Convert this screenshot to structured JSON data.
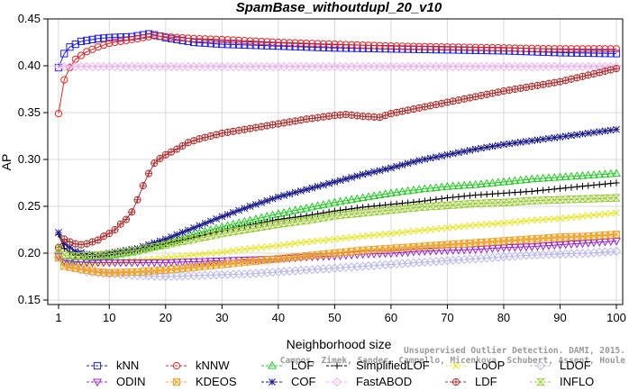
{
  "chart_data": {
    "type": "line",
    "title": "SpamBase_withoutdupl_20_v10",
    "xlabel": "Neighborhood size",
    "ylabel": "AP",
    "xlim": [
      1,
      100
    ],
    "ylim": [
      0.15,
      0.45
    ],
    "xticks": [
      "1",
      "10",
      "20",
      "30",
      "40",
      "50",
      "60",
      "70",
      "80",
      "90",
      "100"
    ],
    "yticks": [
      "0.15",
      "0.20",
      "0.25",
      "0.30",
      "0.35",
      "0.40",
      "0.45"
    ],
    "grid": true,
    "legend_position": "bottom",
    "credit_lines": [
      "Unsupervised Outlier Detection. DAMI, 2015.",
      "Campos, Zimek, Sander, Campello, Micenkova, Schubert, Assent, Houle"
    ],
    "series": [
      {
        "name": "kNN",
        "color": "#1f1fe6",
        "marker": "square",
        "x": [
          1,
          2,
          3,
          5,
          8,
          10,
          14,
          17,
          18,
          20,
          25,
          30,
          40,
          50,
          60,
          70,
          80,
          90,
          100
        ],
        "values": [
          0.398,
          0.413,
          0.42,
          0.426,
          0.429,
          0.43,
          0.431,
          0.434,
          0.433,
          0.43,
          0.425,
          0.423,
          0.421,
          0.419,
          0.418,
          0.417,
          0.416,
          0.414,
          0.413
        ]
      },
      {
        "name": "kNNW",
        "color": "#e6231f",
        "marker": "circle",
        "x": [
          1,
          2,
          3,
          4,
          6,
          8,
          10,
          14,
          17,
          18,
          20,
          25,
          30,
          40,
          50,
          60,
          70,
          80,
          90,
          100
        ],
        "values": [
          0.349,
          0.385,
          0.398,
          0.407,
          0.415,
          0.42,
          0.424,
          0.428,
          0.431,
          0.432,
          0.431,
          0.429,
          0.428,
          0.425,
          0.423,
          0.421,
          0.42,
          0.419,
          0.418,
          0.418
        ]
      },
      {
        "name": "LOF",
        "color": "#22cc22",
        "marker": "triangle-up",
        "x": [
          1,
          2,
          4,
          6,
          8,
          10,
          15,
          20,
          25,
          30,
          35,
          40,
          45,
          50,
          55,
          60,
          65,
          70,
          75,
          80,
          85,
          90,
          95,
          100
        ],
        "values": [
          0.198,
          0.19,
          0.193,
          0.194,
          0.195,
          0.197,
          0.202,
          0.21,
          0.22,
          0.228,
          0.235,
          0.242,
          0.248,
          0.254,
          0.259,
          0.264,
          0.268,
          0.271,
          0.273,
          0.276,
          0.279,
          0.281,
          0.283,
          0.285
        ]
      },
      {
        "name": "SimplifiedLOF",
        "color": "#000000",
        "marker": "plus",
        "x": [
          1,
          2,
          4,
          6,
          8,
          10,
          15,
          20,
          25,
          30,
          35,
          40,
          45,
          50,
          55,
          60,
          65,
          70,
          75,
          80,
          85,
          90,
          95,
          100
        ],
        "values": [
          0.22,
          0.205,
          0.198,
          0.197,
          0.197,
          0.198,
          0.203,
          0.21,
          0.217,
          0.224,
          0.23,
          0.236,
          0.24,
          0.245,
          0.249,
          0.252,
          0.255,
          0.259,
          0.262,
          0.264,
          0.266,
          0.269,
          0.272,
          0.275
        ]
      },
      {
        "name": "LoOP",
        "color": "#e6e61f",
        "marker": "x",
        "x": [
          1,
          2,
          4,
          6,
          8,
          10,
          15,
          20,
          25,
          30,
          35,
          40,
          45,
          50,
          55,
          60,
          65,
          70,
          75,
          80,
          85,
          90,
          95,
          100
        ],
        "values": [
          0.2,
          0.19,
          0.188,
          0.188,
          0.189,
          0.19,
          0.192,
          0.195,
          0.198,
          0.201,
          0.205,
          0.208,
          0.212,
          0.215,
          0.218,
          0.221,
          0.224,
          0.227,
          0.23,
          0.232,
          0.235,
          0.237,
          0.24,
          0.243
        ]
      },
      {
        "name": "LDOF",
        "color": "#b8b8f0",
        "marker": "diamond",
        "x": [
          1,
          2,
          4,
          6,
          8,
          10,
          15,
          20,
          25,
          30,
          35,
          40,
          45,
          50,
          55,
          60,
          65,
          70,
          75,
          80,
          85,
          90,
          95,
          100
        ],
        "values": [
          0.196,
          0.19,
          0.184,
          0.18,
          0.179,
          0.178,
          0.176,
          0.175,
          0.176,
          0.177,
          0.178,
          0.18,
          0.182,
          0.184,
          0.186,
          0.188,
          0.19,
          0.192,
          0.194,
          0.196,
          0.198,
          0.199,
          0.2,
          0.202
        ]
      },
      {
        "name": "ODIN",
        "color": "#9922cc",
        "marker": "triangle-down",
        "x": [
          1,
          2,
          4,
          6,
          8,
          10,
          15,
          20,
          25,
          30,
          35,
          40,
          45,
          50,
          55,
          60,
          65,
          70,
          75,
          80,
          85,
          90,
          95,
          100
        ],
        "values": [
          0.197,
          0.192,
          0.191,
          0.19,
          0.19,
          0.19,
          0.19,
          0.19,
          0.191,
          0.192,
          0.193,
          0.194,
          0.196,
          0.197,
          0.199,
          0.2,
          0.202,
          0.203,
          0.204,
          0.206,
          0.207,
          0.209,
          0.211,
          0.213
        ]
      },
      {
        "name": "KDEOS",
        "color": "#f0a020",
        "marker": "boxed-x",
        "x": [
          1,
          2,
          4,
          6,
          8,
          10,
          15,
          20,
          25,
          30,
          35,
          40,
          45,
          50,
          55,
          60,
          65,
          70,
          75,
          80,
          85,
          90,
          95,
          100
        ],
        "values": [
          0.195,
          0.186,
          0.184,
          0.182,
          0.18,
          0.179,
          0.18,
          0.182,
          0.185,
          0.188,
          0.191,
          0.194,
          0.197,
          0.2,
          0.203,
          0.205,
          0.207,
          0.209,
          0.211,
          0.213,
          0.215,
          0.217,
          0.218,
          0.22
        ]
      },
      {
        "name": "COF",
        "color": "#1a1a8c",
        "marker": "asterisk",
        "x": [
          1,
          2,
          4,
          6,
          8,
          10,
          15,
          20,
          25,
          30,
          35,
          40,
          45,
          50,
          55,
          60,
          65,
          70,
          75,
          80,
          85,
          90,
          95,
          100
        ],
        "values": [
          0.222,
          0.21,
          0.202,
          0.199,
          0.198,
          0.2,
          0.205,
          0.215,
          0.227,
          0.239,
          0.25,
          0.26,
          0.268,
          0.276,
          0.284,
          0.291,
          0.299,
          0.305,
          0.311,
          0.316,
          0.32,
          0.324,
          0.328,
          0.332
        ]
      },
      {
        "name": "FastABOD",
        "color": "#f0b0f0",
        "marker": "diamond",
        "x": [
          1,
          5,
          10,
          20,
          30,
          40,
          50,
          60,
          70,
          80,
          90,
          100
        ],
        "values": [
          0.399,
          0.399,
          0.399,
          0.399,
          0.399,
          0.399,
          0.399,
          0.399,
          0.399,
          0.399,
          0.399,
          0.399
        ]
      },
      {
        "name": "LDF",
        "color": "#b03030",
        "marker": "circle-plus",
        "x": [
          1,
          2,
          3,
          4,
          5,
          6,
          7,
          8,
          9,
          10,
          11,
          12,
          13,
          14,
          15,
          16,
          17,
          18,
          19,
          20,
          22,
          24,
          26,
          28,
          30,
          35,
          40,
          45,
          50,
          52,
          55,
          58,
          60,
          65,
          70,
          75,
          80,
          85,
          90,
          95,
          100
        ],
        "values": [
          0.206,
          0.215,
          0.212,
          0.21,
          0.209,
          0.21,
          0.212,
          0.214,
          0.218,
          0.221,
          0.225,
          0.231,
          0.236,
          0.244,
          0.257,
          0.272,
          0.285,
          0.296,
          0.301,
          0.305,
          0.311,
          0.318,
          0.322,
          0.325,
          0.328,
          0.333,
          0.338,
          0.343,
          0.347,
          0.348,
          0.346,
          0.345,
          0.349,
          0.355,
          0.361,
          0.367,
          0.373,
          0.378,
          0.383,
          0.39,
          0.397
        ]
      },
      {
        "name": "INFLO",
        "color": "#99cc33",
        "marker": "hourglass",
        "x": [
          1,
          2,
          4,
          6,
          8,
          10,
          15,
          20,
          25,
          30,
          35,
          40,
          45,
          50,
          55,
          60,
          65,
          70,
          75,
          80,
          85,
          90,
          95,
          100
        ],
        "values": [
          0.205,
          0.198,
          0.197,
          0.197,
          0.198,
          0.199,
          0.203,
          0.209,
          0.215,
          0.221,
          0.226,
          0.231,
          0.235,
          0.24,
          0.243,
          0.246,
          0.249,
          0.251,
          0.253,
          0.254,
          0.256,
          0.257,
          0.258,
          0.259
        ]
      }
    ],
    "legend_rows": [
      [
        "kNN",
        "kNNW",
        "LOF",
        "SimplifiedLOF",
        "LoOP",
        "LDOF"
      ],
      [
        "ODIN",
        "KDEOS",
        "COF",
        "FastABOD",
        "LDF",
        "INFLO"
      ]
    ]
  }
}
